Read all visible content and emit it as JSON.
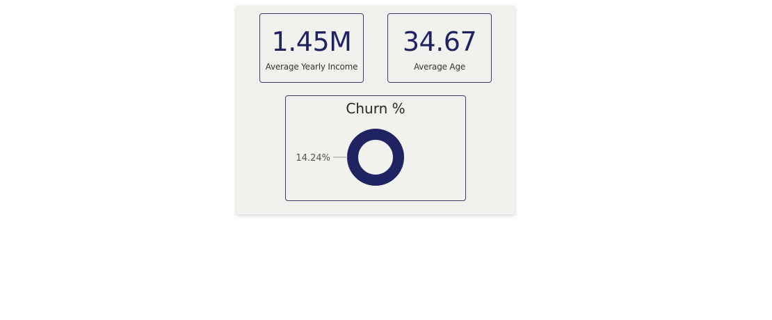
{
  "kpis": [
    {
      "value": "1.45M",
      "label": "Average Yearly Income"
    },
    {
      "value": "34.67",
      "label": "Average Age"
    }
  ],
  "chart_data": {
    "type": "pie",
    "title": "Churn %",
    "slices": [
      {
        "value": 14.24,
        "label": "14.24%",
        "color": "#1f2362"
      }
    ]
  },
  "colors": {
    "accent": "#1f2362",
    "panel_background": "#f1f1ed",
    "border": "#3b3d72"
  }
}
